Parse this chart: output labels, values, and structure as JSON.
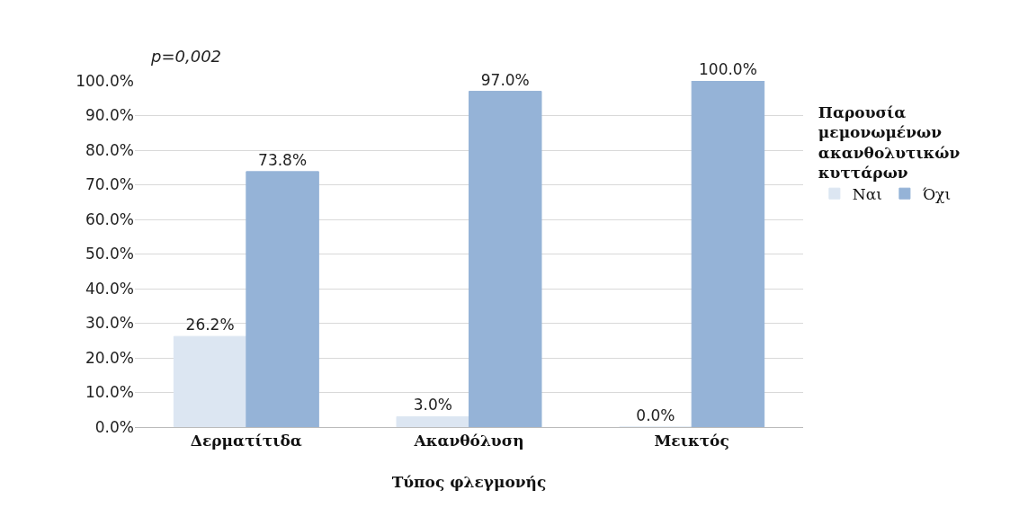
{
  "chart_data": {
    "type": "bar",
    "categories": [
      "Δερματίτιδα",
      "Ακανθόλυση",
      "Μεικτός"
    ],
    "series": [
      {
        "name": "Ναι",
        "color": "#dce6f2",
        "values": [
          26.2,
          3.0,
          0.0
        ],
        "value_labels": [
          "26.2%",
          "3.0%",
          "0.0%"
        ]
      },
      {
        "name": "Όχι",
        "color": "#95b3d7",
        "values": [
          73.8,
          97.0,
          100.0
        ],
        "value_labels": [
          "73.8%",
          "97.0%",
          "100.0%"
        ]
      }
    ],
    "xlabel": "Τύπος φλεγμονής",
    "legend_title": "Παρουσία μεμονωμένων ακανθολυτικών κυττάρων",
    "annotations": [
      "p=0,002"
    ],
    "ylim": [
      0,
      100
    ],
    "yticks": [
      {
        "value": 0,
        "label": "0.0%"
      },
      {
        "value": 10,
        "label": "10.0%"
      },
      {
        "value": 20,
        "label": "20.0%"
      },
      {
        "value": 30,
        "label": "30.0%"
      },
      {
        "value": 40,
        "label": "40.0%"
      },
      {
        "value": 50,
        "label": "50.0%"
      },
      {
        "value": 60,
        "label": "60.0%"
      },
      {
        "value": 70,
        "label": "70.0%"
      },
      {
        "value": 80,
        "label": "80.0%"
      },
      {
        "value": 90,
        "label": "90.0%"
      },
      {
        "value": 100,
        "label": "100.0%"
      }
    ],
    "grid": "y",
    "legend": "right"
  }
}
